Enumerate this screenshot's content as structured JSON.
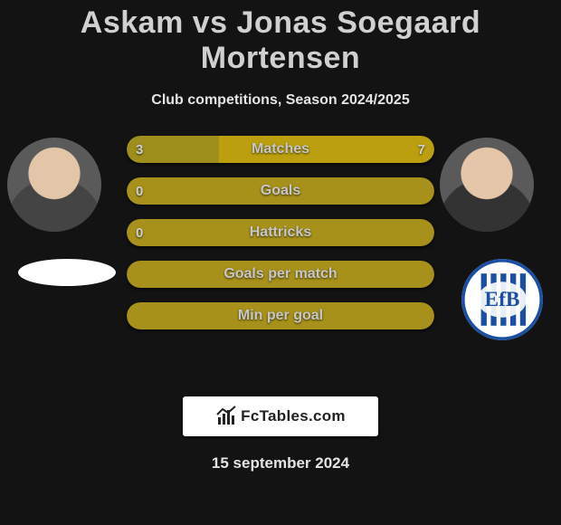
{
  "title": "Askam vs Jonas Soegaard Mortensen",
  "subtitle": "Club competitions, Season 2024/2025",
  "date": "15 september 2024",
  "brand": "FcTables.com",
  "colors": {
    "background": "#131313",
    "bar_left": "#9e8e1c",
    "bar_right": "#bb9f0e",
    "bar_full": "#a7911a",
    "title_text": "#d0d0d0",
    "bar_label_text": "#c7c7c7",
    "bar_value_text": "#cfcfcf"
  },
  "bars": [
    {
      "label": "Matches",
      "left": "3",
      "right": "7",
      "left_pct": 30,
      "right_pct": 70,
      "show_values": true
    },
    {
      "label": "Goals",
      "left": "0",
      "right": "",
      "full": true,
      "show_values": true
    },
    {
      "label": "Hattricks",
      "left": "0",
      "right": "",
      "full": true,
      "show_values": true
    },
    {
      "label": "Goals per match",
      "left": "",
      "right": "",
      "full": true,
      "show_values": false
    },
    {
      "label": "Min per goal",
      "left": "",
      "right": "",
      "full": true,
      "show_values": false
    }
  ],
  "players": {
    "left": {
      "name": "Askam"
    },
    "right": {
      "name": "Jonas Soegaard Mortensen",
      "club": "Esbjerg fB"
    }
  }
}
